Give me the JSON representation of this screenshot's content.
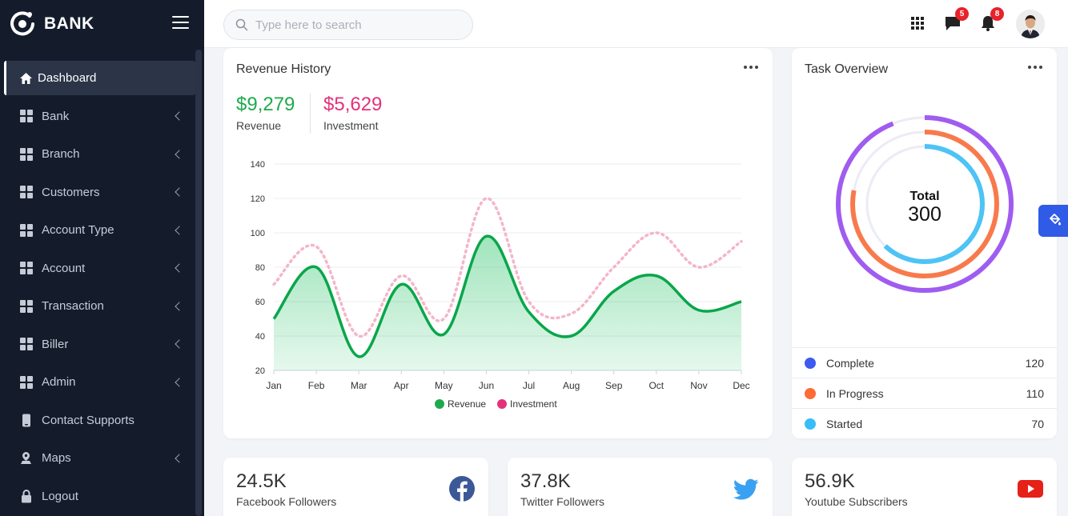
{
  "brand": {
    "name": "BANK",
    "logo_icon": "brand-logo-icon"
  },
  "sidebar": {
    "items": [
      {
        "label": "Dashboard",
        "icon": "home-icon",
        "active": true
      },
      {
        "label": "Bank",
        "icon": "grid-icon",
        "submenu": true
      },
      {
        "label": "Branch",
        "icon": "grid-icon",
        "submenu": true
      },
      {
        "label": "Customers",
        "icon": "grid-icon",
        "submenu": true
      },
      {
        "label": "Account Type",
        "icon": "grid-icon",
        "submenu": true
      },
      {
        "label": "Account",
        "icon": "grid-icon",
        "submenu": true
      },
      {
        "label": "Transaction",
        "icon": "grid-icon",
        "submenu": true
      },
      {
        "label": "Biller",
        "icon": "grid-icon",
        "submenu": true
      },
      {
        "label": "Admin",
        "icon": "grid-icon",
        "submenu": true
      },
      {
        "label": "Contact Supports",
        "icon": "phone-icon",
        "submenu": false
      },
      {
        "label": "Maps",
        "icon": "map-pin-icon",
        "submenu": true
      },
      {
        "label": "Logout",
        "icon": "lock-icon",
        "submenu": false
      }
    ]
  },
  "header": {
    "search_placeholder": "Type here to search",
    "messages_badge": "5",
    "notifications_badge": "8"
  },
  "revenue_card": {
    "title": "Revenue History",
    "revenue_value": "$9,279",
    "revenue_label": "Revenue",
    "investment_value": "$5,629",
    "investment_label": "Investment",
    "revenue_color": "#1eaa4c",
    "investment_color": "#e3327a"
  },
  "chart_data": {
    "type": "area",
    "categories": [
      "Jan",
      "Feb",
      "Mar",
      "Apr",
      "May",
      "Jun",
      "Jul",
      "Aug",
      "Sep",
      "Oct",
      "Nov",
      "Dec"
    ],
    "ylim": [
      20,
      140
    ],
    "yticks": [
      20,
      40,
      60,
      80,
      100,
      120,
      140
    ],
    "grid": true,
    "legend": "bottom",
    "series": [
      {
        "name": "Revenue",
        "values": [
          50,
          80,
          28,
          70,
          41,
          98,
          54,
          40,
          66,
          75,
          55,
          60
        ],
        "color": "#0aa64a",
        "style": "solid-area"
      },
      {
        "name": "Investment",
        "values": [
          70,
          92,
          40,
          75,
          50,
          120,
          60,
          53,
          80,
          100,
          80,
          95
        ],
        "color": "#f4b6c8",
        "style": "dotted"
      }
    ]
  },
  "task_card": {
    "title": "Task Overview",
    "total_label": "Total",
    "total_value": "300",
    "rings": [
      {
        "name": "Complete",
        "value": 120,
        "color": "#3d5af1"
      },
      {
        "name": "In Progress",
        "value": 110,
        "color": "#ff6b35"
      },
      {
        "name": "Started",
        "value": 70,
        "color": "#38bdf8"
      }
    ],
    "legend": [
      {
        "label": "Complete",
        "count": "120",
        "color": "#3d5af1"
      },
      {
        "label": "In Progress",
        "count": "110",
        "color": "#ff6b35"
      },
      {
        "label": "Started",
        "count": "70",
        "color": "#38bdf8"
      }
    ]
  },
  "social": {
    "facebook": {
      "value": "24.5K",
      "label": "Facebook Followers"
    },
    "twitter": {
      "value": "37.8K",
      "label": "Twitter Followers"
    },
    "youtube": {
      "value": "56.9K",
      "label": "Youtube Subscribers"
    }
  }
}
